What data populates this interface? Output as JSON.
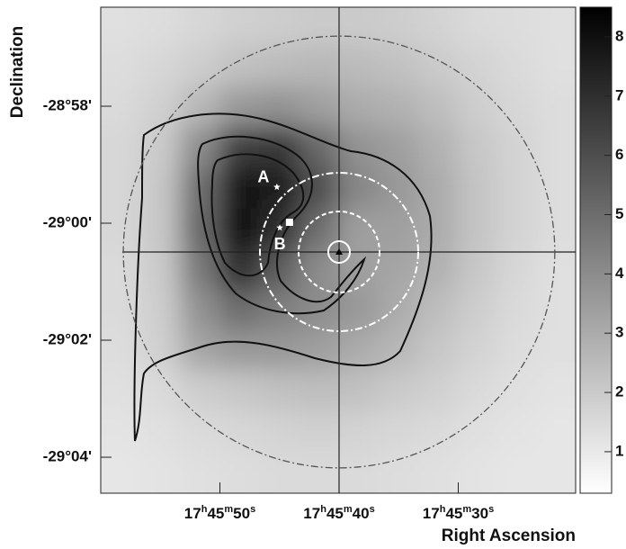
{
  "chart_data": {
    "type": "heatmap",
    "x_label": "Right Ascension",
    "y_label": "Declination",
    "xlim": [
      266.5,
      266.33396
    ],
    "ylim": [
      -29.07692,
      -28.93846
    ],
    "xticks": [
      {
        "value": 266.45833,
        "label": "17h45m50s"
      },
      {
        "value": 266.41667,
        "label": "17h45m40s"
      },
      {
        "value": 266.375,
        "label": "17h45m30s"
      }
    ],
    "yticks": [
      {
        "value": -28.96667,
        "label": "-28°58'"
      },
      {
        "value": -29.0,
        "label": "-29°00'"
      },
      {
        "value": -29.03333,
        "label": "-29°02'"
      },
      {
        "value": -29.06667,
        "label": "-29°04'"
      }
    ],
    "zlim": [
      0.3,
      8.5
    ],
    "zticks": [
      1,
      2,
      3,
      4,
      5,
      6,
      7,
      8
    ],
    "colormap": [
      "#ffffff",
      "#000000"
    ],
    "x": [
      266.4931,
      266.4793,
      266.4654,
      266.4516,
      266.4377,
      266.4239,
      266.4101,
      266.3962,
      266.3824,
      266.3685,
      266.3547,
      266.3408
    ],
    "y": [
      -28.9438,
      -28.9553,
      -28.9669,
      -28.9784,
      -28.9899,
      -29.0015,
      -29.013,
      -29.0246,
      -29.0361,
      -29.0476,
      -29.0592,
      -29.0707
    ],
    "z": [
      [
        1.3,
        1.4,
        1.6,
        1.8,
        1.9,
        2.0,
        2.0,
        1.9,
        1.7,
        1.5,
        1.4,
        1.3
      ],
      [
        1.4,
        1.6,
        1.9,
        2.3,
        2.5,
        2.6,
        2.5,
        2.3,
        2.0,
        1.7,
        1.5,
        1.3
      ],
      [
        1.5,
        1.8,
        2.6,
        3.6,
        3.8,
        3.4,
        3.0,
        2.8,
        2.4,
        1.9,
        1.6,
        1.4
      ],
      [
        1.6,
        2.0,
        4.0,
        6.5,
        6.8,
        5.2,
        3.8,
        3.4,
        2.8,
        2.1,
        1.7,
        1.4
      ],
      [
        1.6,
        2.1,
        5.0,
        7.8,
        7.6,
        6.0,
        4.2,
        3.6,
        3.0,
        2.2,
        1.7,
        1.4
      ],
      [
        1.6,
        2.1,
        5.2,
        8.0,
        7.0,
        5.0,
        3.4,
        3.4,
        3.0,
        2.2,
        1.7,
        1.4
      ],
      [
        1.5,
        2.0,
        4.6,
        7.0,
        5.5,
        4.0,
        3.4,
        3.2,
        2.8,
        2.1,
        1.6,
        1.3
      ],
      [
        1.5,
        1.9,
        3.8,
        5.0,
        4.4,
        4.0,
        3.6,
        3.0,
        2.4,
        1.9,
        1.5,
        1.3
      ],
      [
        1.4,
        1.8,
        3.2,
        3.6,
        3.6,
        3.4,
        3.0,
        2.6,
        2.1,
        1.7,
        1.4,
        1.3
      ],
      [
        1.3,
        1.5,
        1.9,
        2.1,
        2.3,
        2.4,
        2.3,
        2.0,
        1.8,
        1.5,
        1.3,
        1.2
      ],
      [
        1.2,
        1.3,
        1.5,
        1.6,
        1.7,
        1.8,
        1.7,
        1.6,
        1.5,
        1.3,
        1.2,
        1.1
      ],
      [
        1.1,
        1.2,
        1.3,
        1.4,
        1.5,
        1.5,
        1.5,
        1.4,
        1.3,
        1.2,
        1.1,
        1.1
      ]
    ],
    "crosshair": {
      "x": 266.41667,
      "y": -29.0082
    },
    "circles": [
      {
        "radius": 0.0615,
        "color": "#555555",
        "dash": "8 3 2 3"
      },
      {
        "radius": 0.02256,
        "color": "#ffffff",
        "dash": "8 3 2 3"
      },
      {
        "radius": 0.01154,
        "color": "#ffffff",
        "dash": "5 3"
      },
      {
        "radius": 0.00308,
        "color": "#ffffff",
        "dash": "none"
      }
    ],
    "sources": [
      {
        "label": "A",
        "x": 266.4384,
        "y": -28.9897
      },
      {
        "label": "B",
        "x": 266.4374,
        "y": -29.0013
      }
    ],
    "square": {
      "x": 266.434,
      "y": -28.99974
    }
  }
}
